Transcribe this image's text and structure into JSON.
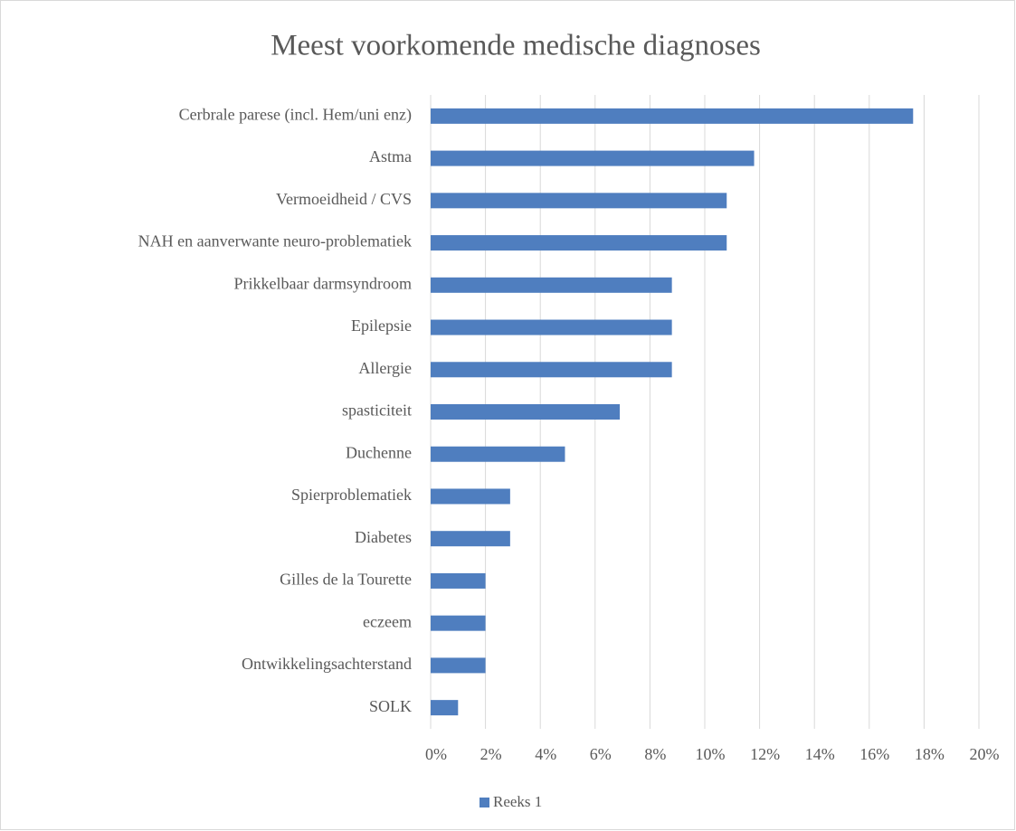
{
  "chart_data": {
    "type": "bar",
    "orientation": "horizontal",
    "title": "Meest voorkomende medische diagnoses",
    "categories": [
      "Cerbrale parese (incl. Hem/uni enz)",
      "Astma",
      "Vermoeidheid / CVS",
      "NAH en aanverwante neuro-problematiek",
      "Prikkelbaar darmsyndroom",
      "Epilepsie",
      "Allergie",
      "spasticiteit",
      "Duchenne",
      "Spierproblematiek",
      "Diabetes",
      "Gilles de la Tourette",
      "eczeem",
      "Ontwikkelingsachterstand",
      "SOLK"
    ],
    "series": [
      {
        "name": "Reeks 1",
        "color": "#4f7ebf",
        "values": [
          17.6,
          11.8,
          10.8,
          10.8,
          8.8,
          8.8,
          8.8,
          6.9,
          4.9,
          2.9,
          2.9,
          2.0,
          2.0,
          2.0,
          1.0
        ]
      }
    ],
    "xlim": [
      0,
      20
    ],
    "xticks": [
      {
        "value": 0,
        "label": "0%"
      },
      {
        "value": 2,
        "label": "2%"
      },
      {
        "value": 4,
        "label": "4%"
      },
      {
        "value": 6,
        "label": "6%"
      },
      {
        "value": 8,
        "label": "8%"
      },
      {
        "value": 10,
        "label": "10%"
      },
      {
        "value": 12,
        "label": "12%"
      },
      {
        "value": 14,
        "label": "14%"
      },
      {
        "value": 16,
        "label": "16%"
      },
      {
        "value": 18,
        "label": "18%"
      },
      {
        "value": 20,
        "label": "20%"
      }
    ],
    "grid": true,
    "legend": "bottom"
  }
}
